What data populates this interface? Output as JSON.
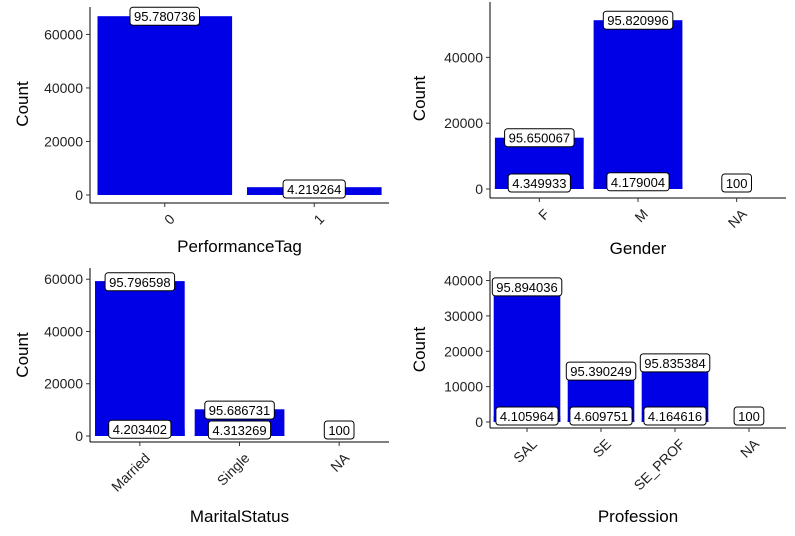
{
  "colors": {
    "bar": "#0000e6",
    "axis": "#000000"
  },
  "chart_data": [
    {
      "type": "bar",
      "xlabel": "PerformanceTag",
      "ylabel": "Count",
      "categories": [
        "0",
        "1"
      ],
      "ylim": [
        0,
        68000
      ],
      "yticks": [
        0,
        20000,
        40000,
        60000
      ],
      "tick_rotation": -45,
      "series": [
        {
          "values": [
            66800,
            2900
          ]
        }
      ],
      "annotations": [
        {
          "category": "0",
          "y": 66800,
          "text": "95.780736"
        },
        {
          "category": "1",
          "y": 1450,
          "text": "4.219264"
        }
      ]
    },
    {
      "type": "bar",
      "xlabel": "Gender",
      "ylabel": "Count",
      "categories": [
        "F",
        "M",
        "NA"
      ],
      "ylim": [
        0,
        55000
      ],
      "yticks": [
        0,
        20000,
        40000
      ],
      "tick_rotation": -45,
      "series": [
        {
          "values": [
            15600,
            51300,
            0
          ]
        },
        {
          "values": [
            700,
            2200,
            2
          ]
        }
      ],
      "annotations": [
        {
          "category": "F",
          "y": 15600,
          "text": "95.650067"
        },
        {
          "category": "F",
          "y": 500,
          "text": "4.349933"
        },
        {
          "category": "M",
          "y": 51300,
          "text": "95.820996"
        },
        {
          "category": "M",
          "y": 2200,
          "text": "4.179004"
        },
        {
          "category": "NA",
          "y": 0,
          "text": "100"
        }
      ]
    },
    {
      "type": "bar",
      "xlabel": "MaritalStatus",
      "ylabel": "Count",
      "categories": [
        "Married",
        "Single",
        "NA"
      ],
      "ylim": [
        0,
        62000
      ],
      "yticks": [
        0,
        20000,
        40000,
        60000
      ],
      "tick_rotation": -45,
      "series": [
        {
          "values": [
            59300,
            10200,
            0
          ]
        },
        {
          "values": [
            2600,
            500,
            6
          ]
        }
      ],
      "annotations": [
        {
          "category": "Married",
          "y": 59000,
          "text": "95.796598"
        },
        {
          "category": "Married",
          "y": 2600,
          "text": "4.203402"
        },
        {
          "category": "Single",
          "y": 9900,
          "text": "95.686731"
        },
        {
          "category": "Single",
          "y": 800,
          "text": "4.313269"
        },
        {
          "category": "NA",
          "y": 0,
          "text": "100"
        }
      ]
    },
    {
      "type": "bar",
      "xlabel": "Profession",
      "ylabel": "Count",
      "categories": [
        "SAL",
        "SE",
        "SE_PROF",
        "NA"
      ],
      "ylim": [
        0,
        41000
      ],
      "yticks": [
        0,
        10000,
        20000,
        30000,
        40000
      ],
      "tick_rotation": -45,
      "series": [
        {
          "values": [
            38400,
            12700,
            14600,
            0
          ]
        },
        {
          "values": [
            1600,
            600,
            640,
            10
          ]
        }
      ],
      "annotations": [
        {
          "category": "SAL",
          "y": 38200,
          "text": "95.894036"
        },
        {
          "category": "SAL",
          "y": 1600,
          "text": "4.105964"
        },
        {
          "category": "SE",
          "y": 14400,
          "text": "95.390249"
        },
        {
          "category": "SE",
          "y": 600,
          "text": "4.609751"
        },
        {
          "category": "SE_PROF",
          "y": 16700,
          "text": "95.835384"
        },
        {
          "category": "SE_PROF",
          "y": 600,
          "text": "4.164616"
        },
        {
          "category": "NA",
          "y": 0,
          "text": "100"
        }
      ]
    }
  ]
}
